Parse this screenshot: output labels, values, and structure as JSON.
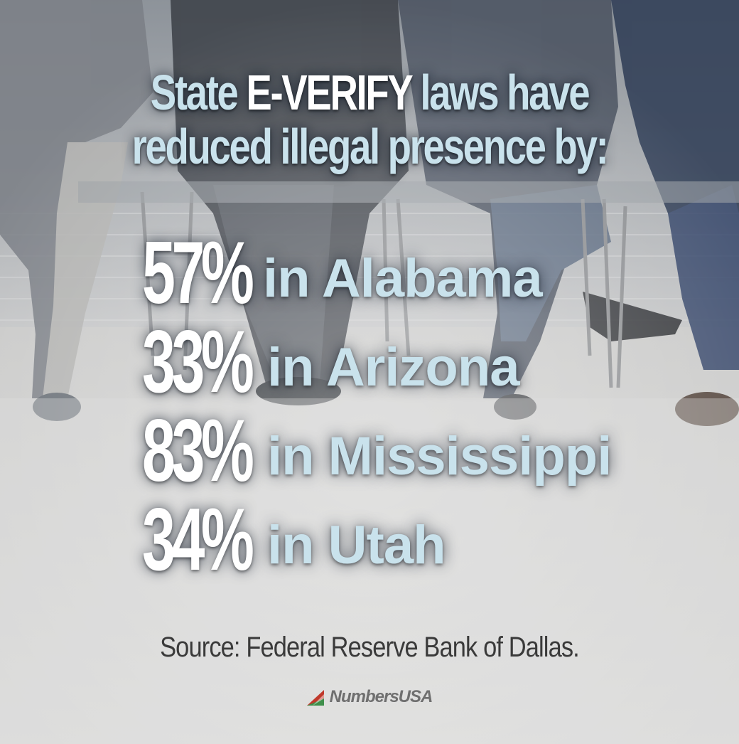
{
  "headline": {
    "line1_pre": "State ",
    "line1_strong": "E-VERIFY",
    "line1_post": " laws have",
    "line2": "reduced illegal presence by:"
  },
  "stats": [
    {
      "percent": "57%",
      "place": "in Alabama"
    },
    {
      "percent": "33%",
      "place": "in Arizona"
    },
    {
      "percent": "83%",
      "place": "in Mississippi"
    },
    {
      "percent": "34%",
      "place": "in Utah"
    }
  ],
  "source": "Source: Federal Reserve Bank of Dallas.",
  "brand": {
    "name": "NumbersUSA",
    "logo_icon": "triangle-flag-logo-icon"
  },
  "colors": {
    "headline": "#c9e2ec",
    "headline_strong": "#ffffff",
    "percent": "#ffffff",
    "place": "#c9e2ec",
    "source": "#3a3a3a",
    "brand": "#6f6f6f",
    "logo_red": "#c0392b",
    "logo_green": "#3f8f4a"
  }
}
